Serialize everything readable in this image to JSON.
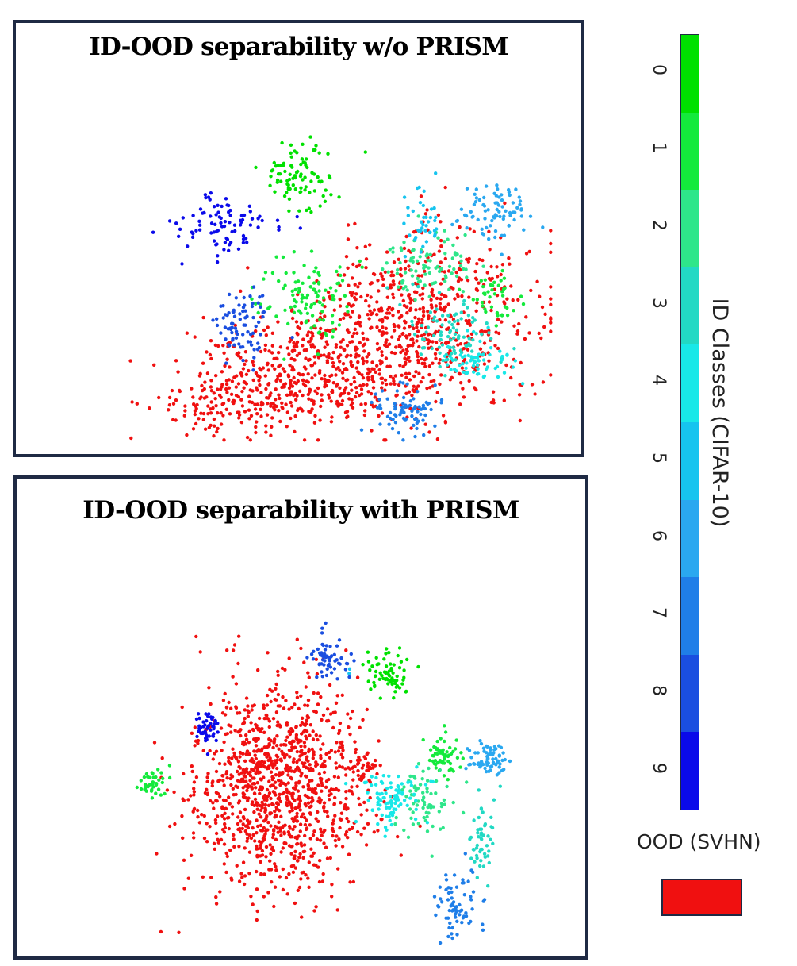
{
  "chart_data": [
    {
      "type": "scatter",
      "title": "ID-OOD separability w/o PRISM",
      "xlabel": "",
      "ylabel": "",
      "grid": false,
      "series": [
        {
          "name": "class 0",
          "color": "#00e100",
          "clusters": [
            {
              "cx": 0.44,
              "cy": 0.28,
              "sx": 0.04,
              "sy": 0.045,
              "n": 90
            }
          ]
        },
        {
          "name": "class 1",
          "color": "#14ea3c",
          "clusters": [
            {
              "cx": 0.46,
              "cy": 0.61,
              "sx": 0.05,
              "sy": 0.05,
              "n": 110
            },
            {
              "cx": 0.87,
              "cy": 0.61,
              "sx": 0.03,
              "sy": 0.03,
              "n": 40
            }
          ]
        },
        {
          "name": "class 2",
          "color": "#2ee68a",
          "clusters": [
            {
              "cx": 0.72,
              "cy": 0.52,
              "sx": 0.05,
              "sy": 0.04,
              "n": 90
            }
          ]
        },
        {
          "name": "class 3",
          "color": "#22d9c4",
          "clusters": [
            {
              "cx": 0.78,
              "cy": 0.7,
              "sx": 0.05,
              "sy": 0.05,
              "n": 90
            }
          ]
        },
        {
          "name": "class 4",
          "color": "#18e8e8",
          "clusters": [
            {
              "cx": 0.83,
              "cy": 0.78,
              "sx": 0.04,
              "sy": 0.03,
              "n": 60
            }
          ]
        },
        {
          "name": "class 5",
          "color": "#16c4ef",
          "clusters": [
            {
              "cx": 0.71,
              "cy": 0.42,
              "sx": 0.02,
              "sy": 0.05,
              "n": 40
            }
          ]
        },
        {
          "name": "class 6",
          "color": "#2aa8f0",
          "clusters": [
            {
              "cx": 0.87,
              "cy": 0.38,
              "sx": 0.04,
              "sy": 0.04,
              "n": 80
            }
          ]
        },
        {
          "name": "class 7",
          "color": "#1f7ee8",
          "clusters": [
            {
              "cx": 0.67,
              "cy": 0.91,
              "sx": 0.04,
              "sy": 0.03,
              "n": 80
            }
          ]
        },
        {
          "name": "class 8",
          "color": "#1a4ee0",
          "clusters": [
            {
              "cx": 0.31,
              "cy": 0.68,
              "sx": 0.03,
              "sy": 0.05,
              "n": 80
            }
          ]
        },
        {
          "name": "class 9",
          "color": "#0a0aea",
          "clusters": [
            {
              "cx": 0.27,
              "cy": 0.42,
              "sx": 0.05,
              "sy": 0.04,
              "n": 90
            }
          ]
        },
        {
          "name": "OOD (SVHN)",
          "color": "#f01010",
          "clusters": [
            {
              "cx": 0.7,
              "cy": 0.68,
              "sx": 0.13,
              "sy": 0.12,
              "n": 620
            },
            {
              "cx": 0.48,
              "cy": 0.8,
              "sx": 0.13,
              "sy": 0.07,
              "n": 420
            },
            {
              "cx": 0.3,
              "cy": 0.9,
              "sx": 0.1,
              "sy": 0.04,
              "n": 150
            }
          ]
        }
      ]
    },
    {
      "type": "scatter",
      "title": "ID-OOD separability with PRISM",
      "xlabel": "",
      "ylabel": "",
      "grid": false,
      "series": [
        {
          "name": "class 0",
          "color": "#00e100",
          "clusters": [
            {
              "cx": 0.64,
              "cy": 0.31,
              "sx": 0.025,
              "sy": 0.03,
              "n": 70
            }
          ]
        },
        {
          "name": "class 1",
          "color": "#14ea3c",
          "clusters": [
            {
              "cx": 0.16,
              "cy": 0.59,
              "sx": 0.015,
              "sy": 0.02,
              "n": 40
            },
            {
              "cx": 0.75,
              "cy": 0.52,
              "sx": 0.02,
              "sy": 0.03,
              "n": 60
            }
          ]
        },
        {
          "name": "class 2",
          "color": "#2ee68a",
          "clusters": [
            {
              "cx": 0.71,
              "cy": 0.64,
              "sx": 0.025,
              "sy": 0.04,
              "n": 70
            }
          ]
        },
        {
          "name": "class 3",
          "color": "#22d9c4",
          "clusters": [
            {
              "cx": 0.83,
              "cy": 0.73,
              "sx": 0.015,
              "sy": 0.05,
              "n": 50
            }
          ]
        },
        {
          "name": "class 4",
          "color": "#18e8e8",
          "clusters": [
            {
              "cx": 0.65,
              "cy": 0.63,
              "sx": 0.03,
              "sy": 0.035,
              "n": 90
            }
          ]
        },
        {
          "name": "class 5",
          "color": "#16c4ef",
          "clusters": [
            {
              "cx": 0.56,
              "cy": 0.3,
              "sx": 0.005,
              "sy": 0.005,
              "n": 2
            }
          ]
        },
        {
          "name": "class 6",
          "color": "#2aa8f0",
          "clusters": [
            {
              "cx": 0.85,
              "cy": 0.53,
              "sx": 0.02,
              "sy": 0.025,
              "n": 70
            }
          ]
        },
        {
          "name": "class 7",
          "color": "#1f7ee8",
          "clusters": [
            {
              "cx": 0.78,
              "cy": 0.9,
              "sx": 0.02,
              "sy": 0.05,
              "n": 70
            }
          ]
        },
        {
          "name": "class 8",
          "color": "#1a4ee0",
          "clusters": [
            {
              "cx": 0.52,
              "cy": 0.27,
              "sx": 0.02,
              "sy": 0.025,
              "n": 60
            }
          ]
        },
        {
          "name": "class 9",
          "color": "#0a0aea",
          "clusters": [
            {
              "cx": 0.27,
              "cy": 0.45,
              "sx": 0.012,
              "sy": 0.02,
              "n": 50
            }
          ]
        },
        {
          "name": "OOD (SVHN)",
          "color": "#f01010",
          "clusters": [
            {
              "cx": 0.41,
              "cy": 0.59,
              "sx": 0.09,
              "sy": 0.13,
              "n": 1100
            },
            {
              "cx": 0.59,
              "cy": 0.55,
              "sx": 0.015,
              "sy": 0.04,
              "n": 40
            }
          ]
        }
      ]
    }
  ],
  "colorbar": {
    "label": "ID Classes (CIFAR-10)",
    "ticks": [
      "0",
      "1",
      "2",
      "3",
      "4",
      "5",
      "6",
      "7",
      "8",
      "9"
    ],
    "colors": [
      "#00e100",
      "#14ea3c",
      "#2ee68a",
      "#22d9c4",
      "#18e8e8",
      "#16c4ef",
      "#2aa8f0",
      "#1f7ee8",
      "#1a4ee0",
      "#0a0aea"
    ]
  },
  "ood_legend": {
    "label": "OOD (SVHN)",
    "color": "#f01010"
  }
}
